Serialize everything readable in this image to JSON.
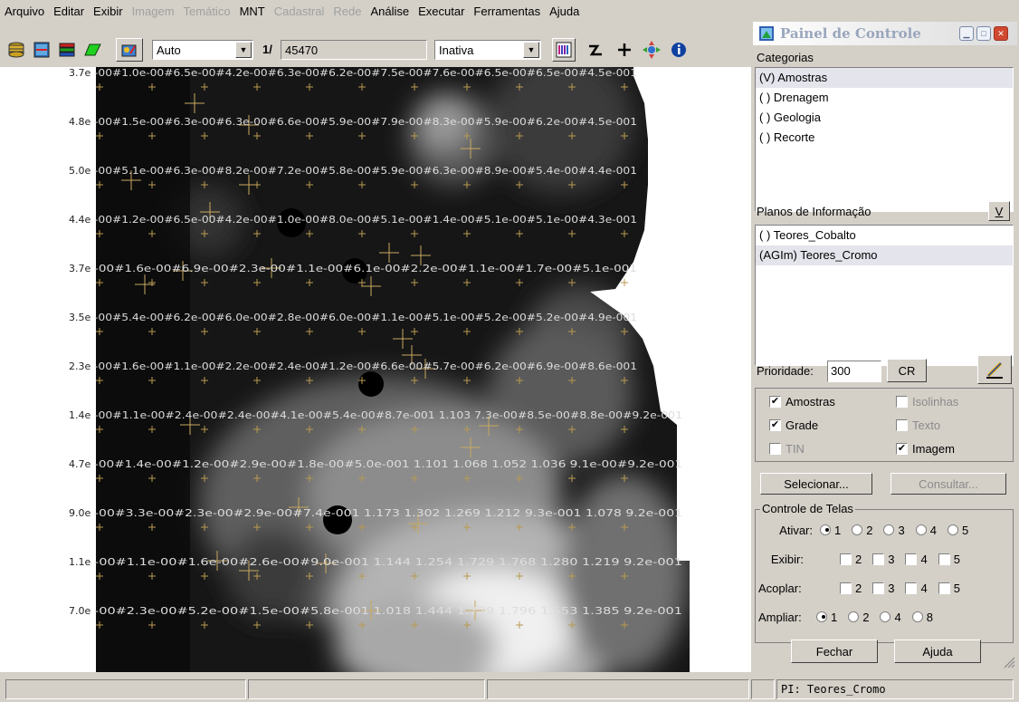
{
  "menu": [
    "Arquivo",
    "Editar",
    "Exibir",
    "Imagem",
    "Temático",
    "MNT",
    "Cadastral",
    "Rede",
    "Análise",
    "Executar",
    "Ferramentas",
    "Ajuda"
  ],
  "menu_disabled": [
    "Imagem",
    "Temático",
    "Cadastral",
    "Rede"
  ],
  "toolbar": {
    "scale_select": "Auto",
    "scale_prefix": "1/",
    "scale_value": "45470",
    "mode_select": "Inativa",
    "icons": [
      "database-icon",
      "theme-icon",
      "layers-icon",
      "polygon-icon",
      "draw-icon",
      "colors-icon",
      "north-icon",
      "zoom-in-icon",
      "pan-icon",
      "info-icon"
    ]
  },
  "map": {
    "row_labels": [
      "3.7e",
      "4.8e",
      "5.0e",
      "4.4e",
      "3.7e",
      "3.5e",
      "2.3e",
      "1.4e",
      "4.7e",
      "9.0e",
      "1.1e",
      "7.0e"
    ],
    "grid_rows": [
      "-00#1.0e-00#6.5e-00#4.2e-00#6.3e-00#6.2e-00#7.5e-00#7.6e-00#6.5e-00#6.5e-00#4.5e-001",
      "-00#1.5e-00#6.3e-00#6.3e-00#6.6e-00#5.9e-00#7.9e-00#8.3e-00#5.9e-00#6.2e-00#4.5e-001",
      "-00#5.1e-00#6.3e-00#8.2e-00#7.2e-00#5.8e-00#5.9e-00#6.3e-00#8.9e-00#5.4e-00#4.4e-001",
      "-00#1.2e-00#6.5e-00#4.2e-00#1.0e-00#8.0e-00#5.1e-00#1.4e-00#5.1e-00#5.1e-00#4.3e-001",
      "-00#1.6e-00#6.9e-00#2.3e-00#1.1e-00#6.1e-00#2.2e-00#1.1e-00#1.7e-00#5.1e-001",
      "-00#5.4e-00#6.2e-00#6.0e-00#2.8e-00#6.0e-00#1.1e-00#5.1e-00#5.2e-00#5.2e-00#4.9e-001",
      "-00#1.6e-00#1.1e-00#2.2e-00#2.4e-00#1.2e-00#6.6e-00#5.7e-00#6.2e-00#6.9e-00#8.6e-001",
      "-00#1.1e-00#2.4e-00#2.4e-00#4.1e-00#5.4e-00#8.7e-001   1.103  7.3e-00#8.5e-00#8.8e-00#9.2e-001",
      "-00#1.4e-00#1.2e-00#2.9e-00#1.8e-00#5.0e-001  1.101   1.068   1.052   1.036  9.1e-00#9.2e-001",
      "-00#3.3e-00#2.3e-00#2.9e-00#7.4e-001  1.173   1.302   1.269   1.212  9.3e-001  1.078  9.2e-001",
      "-00#1.1e-00#1.6e-00#2.6e-00#9.0e-001  1.144   1.254   1.729   1.768   1.280   1.219  9.2e-001",
      "-00#2.3e-00#5.2e-00#1.5e-00#5.8e-001  1.018   1.444   1.729   1.796   1.553   1.385  9.2e-001"
    ]
  },
  "status": {
    "cell1": "",
    "cell2": "",
    "cell3": "",
    "cell4": "",
    "pi": "PI: Teores_Cromo"
  },
  "panel": {
    "title": "Painel de Controle",
    "categorias_label": "Categorias",
    "categorias": [
      "(V) Amostras",
      "( ) Drenagem",
      "( ) Geologia",
      "( ) Recorte"
    ],
    "categorias_selected": 0,
    "planos_label": "Planos de Informação",
    "planos_button": "V",
    "planos": [
      "( ) Teores_Cobalto",
      "(AGIm) Teores_Cromo"
    ],
    "planos_selected": 1,
    "prioridade_label": "Prioridade:",
    "prioridade_value": "300",
    "cr_button": "CR",
    "checks": {
      "amostras": {
        "label": "Amostras",
        "checked": true
      },
      "isolinhas": {
        "label": "Isolinhas",
        "checked": false
      },
      "grade": {
        "label": "Grade",
        "checked": true
      },
      "texto": {
        "label": "Texto",
        "checked": false
      },
      "tin": {
        "label": "TIN",
        "checked": false
      },
      "imagem": {
        "label": "Imagem",
        "checked": true
      }
    },
    "selecionar_button": "Selecionar...",
    "consultar_button": "Consultar...",
    "telas_label": "Controle de Telas",
    "ativar_label": "Ativar:",
    "exibir_label": "Exibir:",
    "acoplar_label": "Acoplar:",
    "ampliar_label": "Ampliar:",
    "screens": [
      "1",
      "2",
      "3",
      "4",
      "5"
    ],
    "checks_screens": [
      "2",
      "3",
      "4",
      "5"
    ],
    "ampliar_options": [
      "1",
      "2",
      "4",
      "8"
    ],
    "fechar_button": "Fechar",
    "ajuda_button": "Ajuda"
  }
}
